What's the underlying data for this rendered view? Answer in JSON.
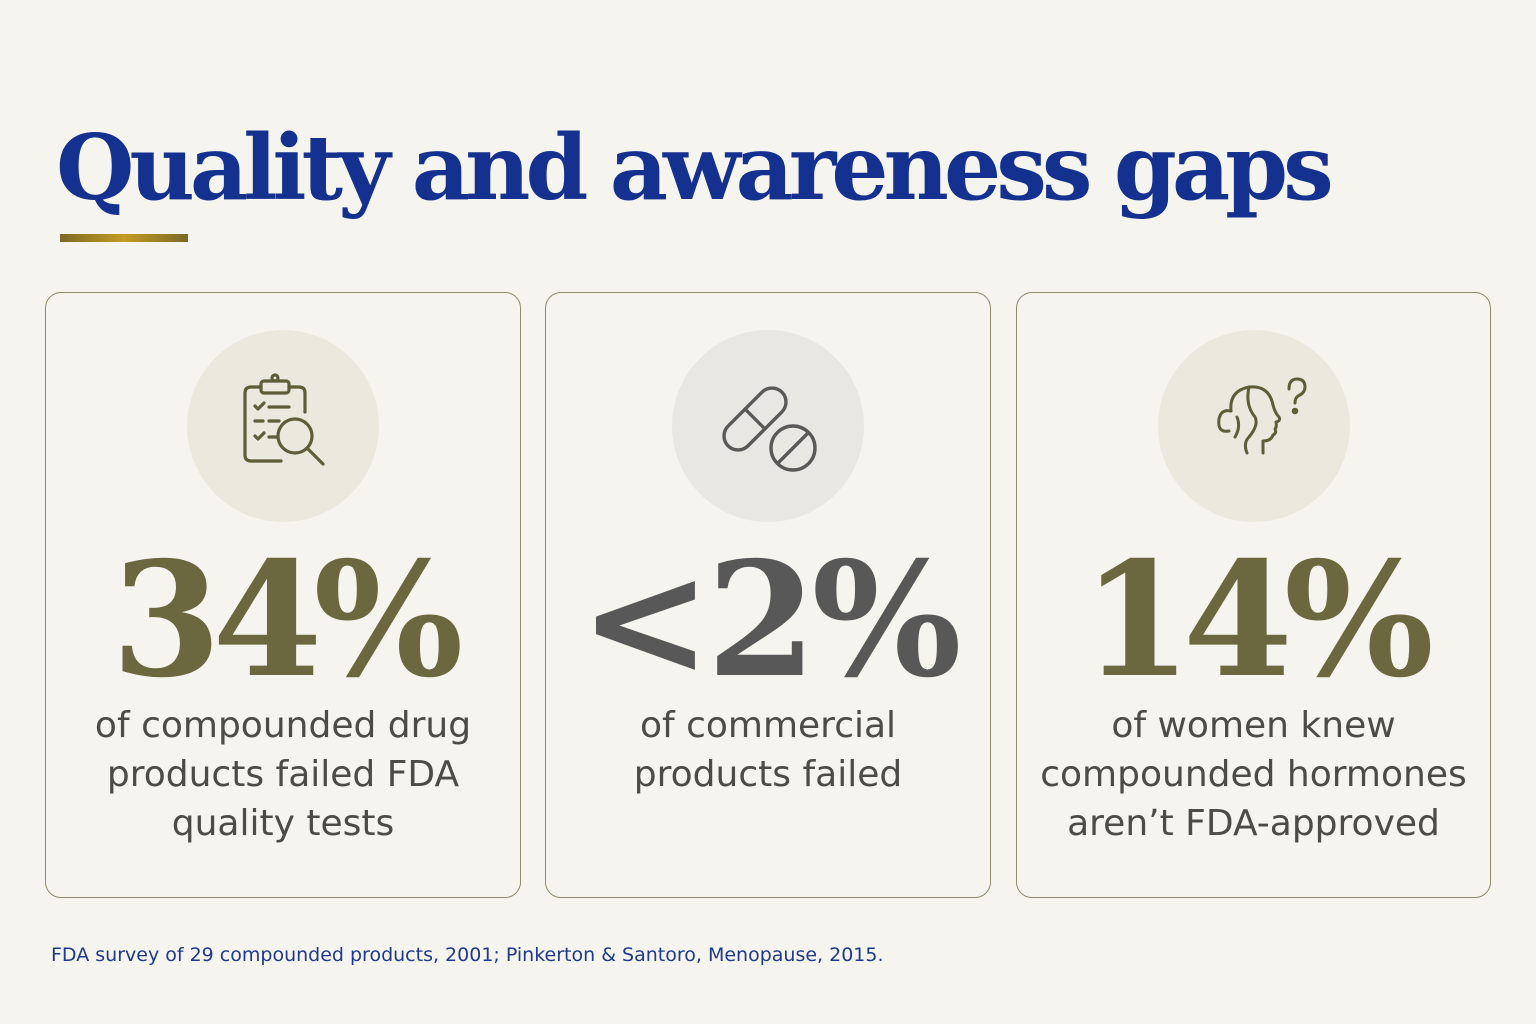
{
  "title": "Quality and awareness gaps",
  "colors": {
    "title": "#14318f",
    "accent_rule": "#c59a24",
    "olive": "#6b683f",
    "gray": "#585858",
    "source": "#1f3a8a"
  },
  "cards": [
    {
      "icon": "clipboard-search-icon",
      "stat": "34%",
      "description": "of compounded drug\nproducts failed FDA\nquality tests"
    },
    {
      "icon": "pill-capsule-icon",
      "stat": "<2%",
      "description": "of commercial\nproducts failed"
    },
    {
      "icon": "woman-question-icon",
      "stat": "14%",
      "description": "of women knew\ncompounded hormones\naren’t FDA-approved"
    }
  ],
  "source": "FDA survey of 29 compounded products, 2001; Pinkerton & Santoro, Menopause, 2015."
}
